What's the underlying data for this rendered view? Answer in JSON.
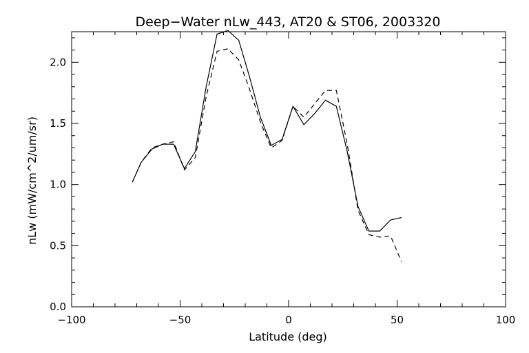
{
  "chart_data": {
    "type": "line",
    "title": "Deep−Water nLw_443, AT20 & ST06, 2003320",
    "xlabel": "Latitude (deg)",
    "ylabel": "nLw (mW/cm^2/um/sr)",
    "xlim": [
      -100,
      100
    ],
    "ylim": [
      0,
      2.25
    ],
    "xticks": [
      -100,
      -50,
      0,
      50,
      100
    ],
    "xtick_labels": [
      "−100",
      "−50",
      "0",
      "50",
      "100"
    ],
    "yticks": [
      0.0,
      0.5,
      1.0,
      1.5,
      2.0
    ],
    "ytick_labels": [
      "0.0",
      "0.5",
      "1.0",
      "1.5",
      "2.0"
    ],
    "grid": false,
    "legend": "none",
    "series": [
      {
        "style": "solid",
        "x": [
          -72,
          -68,
          -63,
          -58,
          -53,
          -48,
          -43,
          -38,
          -33,
          -28,
          -23,
          -18,
          -13,
          -8,
          -3,
          2,
          7,
          12,
          17,
          22,
          27,
          32,
          37,
          42,
          47,
          52
        ],
        "y": [
          1.02,
          1.18,
          1.29,
          1.33,
          1.33,
          1.13,
          1.27,
          1.8,
          2.23,
          2.26,
          2.18,
          1.88,
          1.55,
          1.32,
          1.37,
          1.64,
          1.49,
          1.58,
          1.69,
          1.64,
          1.27,
          0.82,
          0.62,
          0.62,
          0.71,
          0.73
        ]
      },
      {
        "style": "dashed",
        "x": [
          -72,
          -68,
          -63,
          -58,
          -53,
          -48,
          -43,
          -38,
          -33,
          -28,
          -23,
          -18,
          -13,
          -8,
          -3,
          2,
          7,
          12,
          17,
          22,
          27,
          32,
          37,
          42,
          47,
          52
        ],
        "y": [
          1.02,
          1.18,
          1.3,
          1.33,
          1.35,
          1.12,
          1.22,
          1.72,
          2.09,
          2.11,
          2.02,
          1.78,
          1.51,
          1.3,
          1.36,
          1.64,
          1.55,
          1.66,
          1.77,
          1.77,
          1.33,
          0.79,
          0.59,
          0.57,
          0.58,
          0.37
        ]
      }
    ]
  }
}
